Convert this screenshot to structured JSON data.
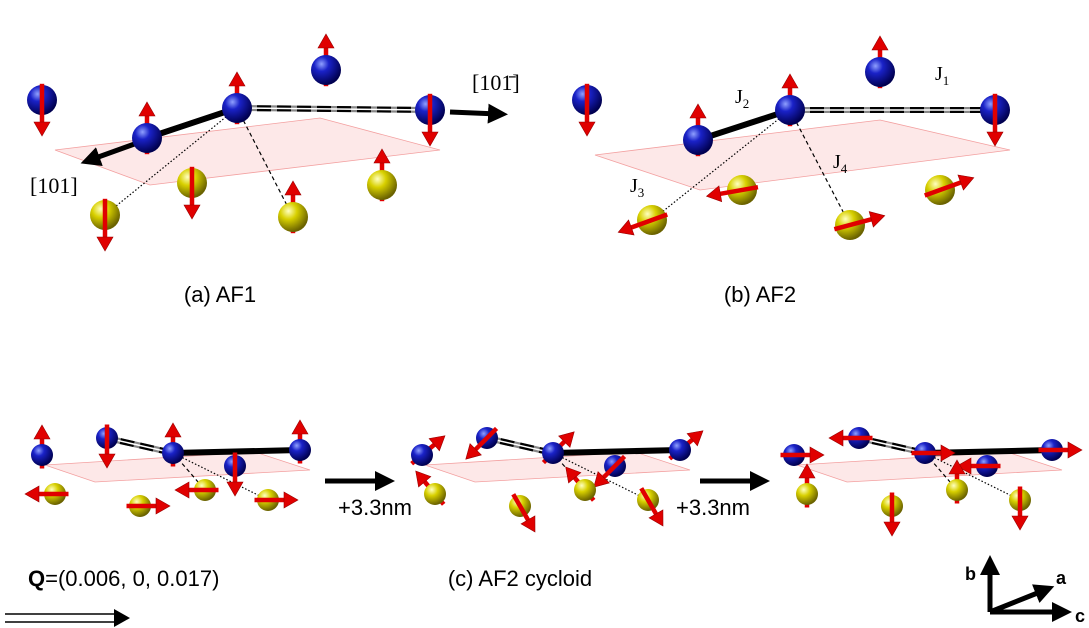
{
  "panels": [
    {
      "caption": "(a) AF1",
      "directions": [
        "[101]",
        "[101̄]"
      ]
    },
    {
      "caption": "(b)  AF2",
      "exchange": [
        {
          "symbol": "J",
          "subscript": "1"
        },
        {
          "symbol": "J",
          "subscript": "2"
        },
        {
          "symbol": "J",
          "subscript": "3"
        },
        {
          "symbol": "J",
          "subscript": "4"
        }
      ]
    },
    {
      "caption": "(c) AF2 cycloid"
    }
  ],
  "translations": [
    "+3.3nm",
    "+3.3nm"
  ],
  "wave_vector": {
    "symbol": "Q",
    "value": "=(0.006, 0, 0.017)"
  },
  "axes": [
    "b",
    "a",
    "c"
  ]
}
